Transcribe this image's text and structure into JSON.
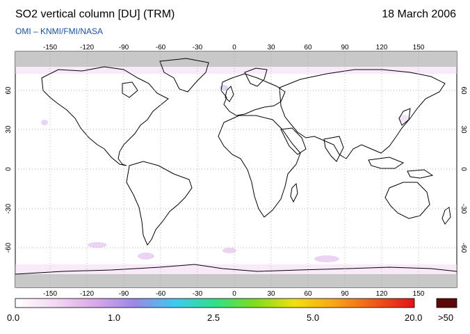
{
  "header": {
    "title": "SO2 vertical column [DU] (TRM)",
    "date": "18 March 2006",
    "credit": "OMI  –  KNMI/FMI/NASA"
  },
  "map": {
    "lon_ticks": [
      "-150",
      "-120",
      "-90",
      "-60",
      "-30",
      "0",
      "30",
      "60",
      "90",
      "120",
      "150"
    ],
    "lat_ticks": [
      "60",
      "30",
      "0",
      "-30",
      "-60"
    ],
    "land_outline_color": "#000000",
    "polar_no_data_color": "#c8c8c8",
    "grid_color": "#9a9a9a"
  },
  "colorbar": {
    "labels": [
      "0.0",
      "1.0",
      "2.5",
      "5.0",
      "20.0"
    ],
    "overflow_label": ">50",
    "stops": [
      "#ffffff",
      "#f3d8f2",
      "#d9a8e8",
      "#9a88e6",
      "#3ec9f0",
      "#2fe08a",
      "#7fdc1e",
      "#f0e010",
      "#f7a418",
      "#ef5a18",
      "#e3121a"
    ],
    "overflow_color": "#5a0a0a"
  }
}
